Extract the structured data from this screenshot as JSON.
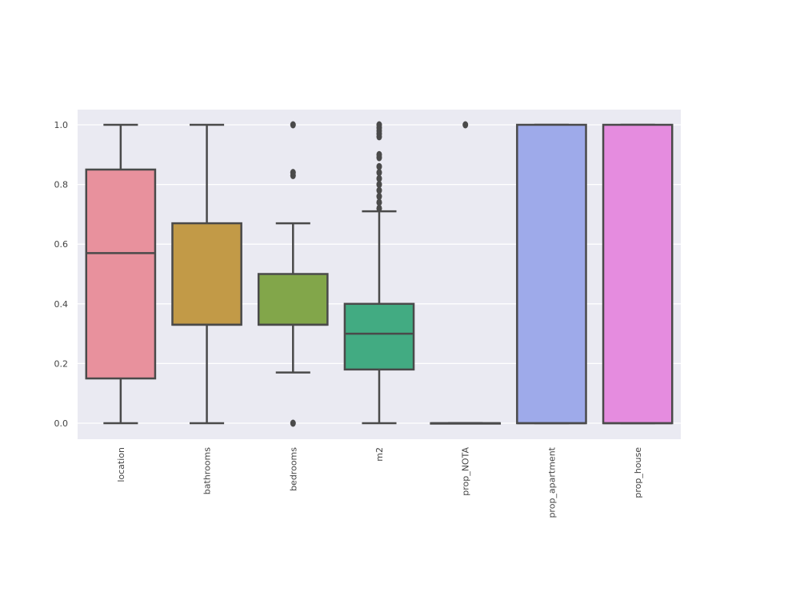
{
  "chart_data": {
    "type": "boxplot",
    "categories": [
      "location",
      "bathrooms",
      "bedrooms",
      "m2",
      "prop_NOTA",
      "prop_apartment",
      "prop_house"
    ],
    "y_ticks": [
      "0.0",
      "0.2",
      "0.4",
      "0.6",
      "0.8",
      "1.0"
    ],
    "ylim": [
      -0.05,
      1.05
    ],
    "grid": true,
    "boxes": [
      {
        "name": "location",
        "whisker_low": 0.0,
        "q1": 0.15,
        "median": 0.57,
        "q3": 0.85,
        "whisker_high": 1.0,
        "outliers": [],
        "color": "#e8919d"
      },
      {
        "name": "bathrooms",
        "whisker_low": 0.0,
        "q1": 0.33,
        "median": 0.33,
        "q3": 0.67,
        "whisker_high": 1.0,
        "outliers": [],
        "color": "#c29a47"
      },
      {
        "name": "bedrooms",
        "whisker_low": 0.17,
        "q1": 0.33,
        "median": 0.33,
        "q3": 0.5,
        "whisker_high": 0.67,
        "outliers": [
          0.0,
          0.83,
          0.84,
          1.0
        ],
        "color": "#82a64a"
      },
      {
        "name": "m2",
        "whisker_low": 0.0,
        "q1": 0.18,
        "median": 0.3,
        "q3": 0.4,
        "whisker_high": 0.71,
        "outliers": [
          0.72,
          0.74,
          0.76,
          0.78,
          0.8,
          0.82,
          0.84,
          0.86,
          0.89,
          0.9,
          0.96,
          0.97,
          0.98,
          0.99,
          1.0
        ],
        "color": "#42ab82"
      },
      {
        "name": "prop_NOTA",
        "whisker_low": 0.0,
        "q1": 0.0,
        "median": 0.0,
        "q3": 0.0,
        "whisker_high": 0.0,
        "outliers": [
          1.0
        ],
        "color": "#48a4b4"
      },
      {
        "name": "prop_apartment",
        "whisker_low": 0.0,
        "q1": 0.0,
        "median": 0.0,
        "q3": 1.0,
        "whisker_high": 1.0,
        "outliers": [],
        "color": "#9eaaea"
      },
      {
        "name": "prop_house",
        "whisker_low": 0.0,
        "q1": 0.0,
        "median": 0.0,
        "q3": 1.0,
        "whisker_high": 1.0,
        "outliers": [],
        "color": "#e58cdf"
      }
    ]
  },
  "style": {
    "plot_background": "#eaeaf2",
    "grid_color": "#ffffff",
    "line_color": "#4a4a4a"
  }
}
